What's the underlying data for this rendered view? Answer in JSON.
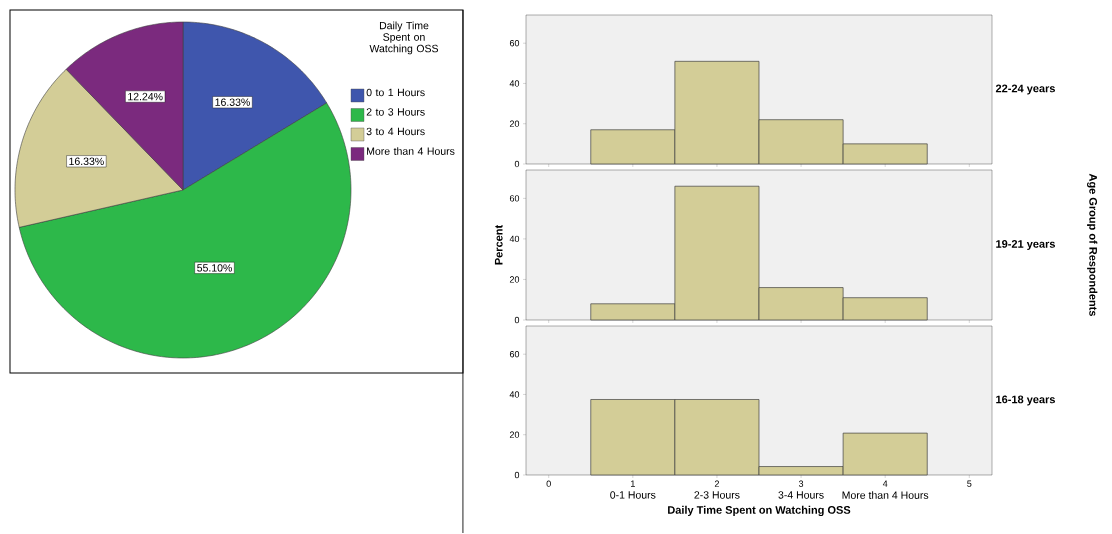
{
  "chart_data": [
    {
      "type": "pie",
      "legend_title": "Daily Time Spent on Watching OSS",
      "categories": [
        "0 to 1 Hours",
        "2 to 3 Hours",
        "3 to 4 Hours",
        "More than 4 Hours"
      ],
      "values": [
        16.33,
        55.1,
        16.33,
        12.24
      ],
      "colors": [
        "#3f56ad",
        "#2db84a",
        "#d3cd97",
        "#7b2a7e"
      ],
      "value_labels": [
        "16.33%",
        "55.10%",
        "16.33%",
        "12.24%"
      ],
      "legend": "top right"
    },
    {
      "type": "histogram",
      "title": "22-24 years",
      "bins": [
        0.5,
        1.5,
        2.5,
        3.5,
        4.5
      ],
      "values": [
        17,
        51,
        22,
        10
      ],
      "color": "#d3cd97",
      "xlim": [
        -0.27,
        5.27
      ],
      "ylim": [
        0,
        74
      ],
      "xticks": [
        0,
        1,
        2,
        3,
        4,
        5
      ],
      "yticks": [
        0,
        20,
        40,
        60
      ],
      "tick_labels": "y"
    },
    {
      "type": "histogram",
      "title": "19-21 years",
      "ylabel": "Percent",
      "y2label": "Age Group of Respondents",
      "bins": [
        0.5,
        1.5,
        2.5,
        3.5,
        4.5
      ],
      "values": [
        8,
        66,
        16,
        11
      ],
      "color": "#d3cd97",
      "xlim": [
        -0.27,
        5.27
      ],
      "ylim": [
        0,
        74
      ],
      "xticks": [
        0,
        1,
        2,
        3,
        4,
        5
      ],
      "yticks": [
        0,
        20,
        40,
        60
      ],
      "tick_labels": "y"
    },
    {
      "type": "histogram",
      "title": "16-18 years",
      "xlabel": "Daily Time Spent on Watching OSS",
      "annotations": [
        "0-1 Hours",
        "2-3 Hours",
        "3-4 Hours",
        "More than 4 Hours"
      ],
      "bins": [
        0.5,
        1.5,
        2.5,
        3.5,
        4.5
      ],
      "values": [
        37.5,
        37.5,
        4.2,
        20.8
      ],
      "color": "#d3cd97",
      "xlim": [
        -0.27,
        5.27
      ],
      "ylim": [
        0,
        74
      ],
      "xticks": [
        0,
        1,
        2,
        3,
        4,
        5
      ],
      "yticks": [
        0,
        20,
        40,
        60
      ]
    }
  ]
}
